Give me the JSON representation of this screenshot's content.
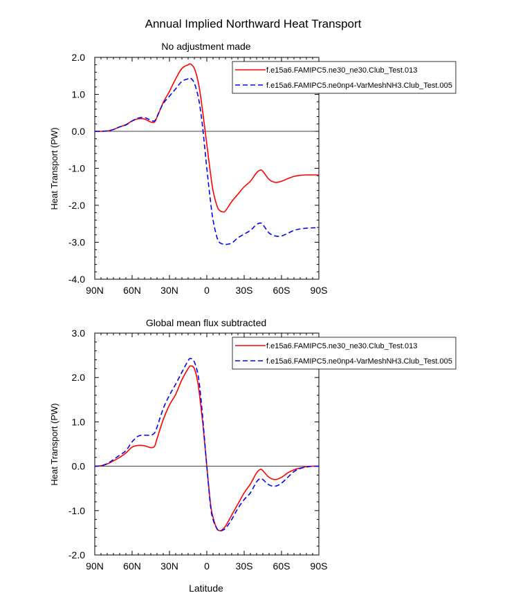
{
  "figure": {
    "title": "Annual Implied Northward Heat Transport",
    "xlabel": "Latitude"
  },
  "colors": {
    "series_1": "#ff0000",
    "series_2": "#0000ff",
    "zero_line": "#000000"
  },
  "chart_data": [
    {
      "type": "line",
      "title": "No adjustment made",
      "ylabel": "Heat Transport (PW)",
      "xlabel": "",
      "xlim": [
        -90,
        90
      ],
      "ylim": [
        -4.0,
        2.0
      ],
      "x_ticks": [
        -90,
        -60,
        -30,
        0,
        30,
        60,
        90
      ],
      "x_tick_labels": [
        "90N",
        "60N",
        "30N",
        "0",
        "30S",
        "60S",
        "90S"
      ],
      "y_ticks": [
        2.0,
        1.0,
        0.0,
        -1.0,
        -2.0,
        -3.0,
        -4.0
      ],
      "y_tick_labels": [
        "2.0",
        "1.0",
        "0.0",
        "-1.0",
        "-2.0",
        "-3.0",
        "-4.0"
      ],
      "grid": false,
      "legend_position": "top-right",
      "series": [
        {
          "name": "f.e15a6.FAMIPC5.ne30_ne30.Club_Test.013",
          "style": "solid",
          "x": [
            -90,
            -85,
            -80,
            -75,
            -70,
            -65,
            -60,
            -55,
            -50,
            -45,
            -42,
            -40,
            -35,
            -30,
            -25,
            -20,
            -15,
            -13,
            -10,
            -7,
            -5,
            -3,
            0,
            3,
            5,
            8,
            10,
            13,
            15,
            20,
            25,
            30,
            35,
            40,
            43,
            45,
            50,
            55,
            60,
            65,
            70,
            75,
            80,
            85,
            90
          ],
          "y": [
            0.0,
            0.0,
            0.01,
            0.05,
            0.12,
            0.18,
            0.28,
            0.34,
            0.33,
            0.25,
            0.25,
            0.38,
            0.78,
            1.08,
            1.42,
            1.7,
            1.8,
            1.82,
            1.7,
            1.35,
            0.95,
            0.45,
            -0.35,
            -1.15,
            -1.6,
            -2.0,
            -2.13,
            -2.18,
            -2.15,
            -1.9,
            -1.7,
            -1.5,
            -1.35,
            -1.12,
            -1.05,
            -1.08,
            -1.3,
            -1.38,
            -1.35,
            -1.28,
            -1.22,
            -1.19,
            -1.18,
            -1.18,
            -1.18
          ]
        },
        {
          "name": "f.e15a6.FAMIPC5.ne0np4-VarMeshNH3.Club_Test.005",
          "style": "dashed",
          "x": [
            -90,
            -85,
            -80,
            -75,
            -70,
            -65,
            -60,
            -55,
            -50,
            -45,
            -42,
            -40,
            -35,
            -30,
            -25,
            -20,
            -15,
            -13,
            -10,
            -7,
            -5,
            -3,
            0,
            3,
            5,
            8,
            10,
            13,
            15,
            20,
            25,
            30,
            35,
            40,
            43,
            45,
            50,
            55,
            60,
            65,
            70,
            75,
            80,
            85,
            90
          ],
          "y": [
            0.0,
            0.0,
            0.01,
            0.05,
            0.12,
            0.17,
            0.28,
            0.36,
            0.37,
            0.3,
            0.28,
            0.4,
            0.75,
            0.95,
            1.15,
            1.35,
            1.42,
            1.44,
            1.3,
            0.95,
            0.55,
            0.0,
            -1.0,
            -1.9,
            -2.4,
            -2.85,
            -3.0,
            -3.05,
            -3.06,
            -3.02,
            -2.88,
            -2.78,
            -2.68,
            -2.52,
            -2.48,
            -2.52,
            -2.75,
            -2.83,
            -2.83,
            -2.76,
            -2.68,
            -2.64,
            -2.62,
            -2.61,
            -2.61
          ]
        }
      ]
    },
    {
      "type": "line",
      "title": "Global mean flux subtracted",
      "ylabel": "Heat Transport (PW)",
      "xlabel": "Latitude",
      "xlim": [
        -90,
        90
      ],
      "ylim": [
        -2.0,
        3.0
      ],
      "x_ticks": [
        -90,
        -60,
        -30,
        0,
        30,
        60,
        90
      ],
      "x_tick_labels": [
        "90N",
        "60N",
        "30N",
        "0",
        "30S",
        "60S",
        "90S"
      ],
      "y_ticks": [
        3.0,
        2.0,
        1.0,
        0.0,
        -1.0,
        -2.0
      ],
      "y_tick_labels": [
        "3.0",
        "2.0",
        "1.0",
        "0.0",
        "-1.0",
        "-2.0"
      ],
      "grid": false,
      "legend_position": "top-right",
      "series": [
        {
          "name": "f.e15a6.FAMIPC5.ne30_ne30.Club_Test.013",
          "style": "solid",
          "x": [
            -90,
            -85,
            -80,
            -75,
            -70,
            -65,
            -60,
            -55,
            -50,
            -45,
            -42,
            -40,
            -35,
            -30,
            -25,
            -20,
            -15,
            -13,
            -10,
            -7,
            -5,
            -3,
            0,
            3,
            5,
            8,
            10,
            12,
            15,
            20,
            25,
            30,
            35,
            40,
            43,
            45,
            50,
            55,
            60,
            65,
            70,
            75,
            80,
            85,
            90
          ],
          "y": [
            0.0,
            0.01,
            0.05,
            0.12,
            0.2,
            0.3,
            0.43,
            0.47,
            0.46,
            0.42,
            0.45,
            0.62,
            1.05,
            1.38,
            1.62,
            1.95,
            2.2,
            2.26,
            2.2,
            1.85,
            1.4,
            0.9,
            0.0,
            -0.85,
            -1.15,
            -1.4,
            -1.45,
            -1.44,
            -1.35,
            -1.1,
            -0.85,
            -0.6,
            -0.4,
            -0.15,
            -0.07,
            -0.1,
            -0.25,
            -0.3,
            -0.25,
            -0.15,
            -0.08,
            -0.04,
            -0.01,
            0.0,
            0.0
          ]
        },
        {
          "name": "f.e15a6.FAMIPC5.ne0np4-VarMeshNH3.Club_Test.005",
          "style": "dashed",
          "x": [
            -90,
            -85,
            -80,
            -75,
            -70,
            -65,
            -60,
            -55,
            -50,
            -45,
            -42,
            -40,
            -35,
            -30,
            -25,
            -20,
            -15,
            -13,
            -10,
            -7,
            -5,
            -3,
            0,
            3,
            5,
            8,
            10,
            12,
            15,
            20,
            25,
            30,
            35,
            40,
            43,
            45,
            50,
            55,
            60,
            65,
            70,
            75,
            80,
            85,
            90
          ],
          "y": [
            0.0,
            0.01,
            0.06,
            0.15,
            0.25,
            0.35,
            0.55,
            0.68,
            0.7,
            0.7,
            0.75,
            0.88,
            1.3,
            1.6,
            1.85,
            2.12,
            2.38,
            2.43,
            2.35,
            2.05,
            1.6,
            1.0,
            0.0,
            -0.9,
            -1.2,
            -1.4,
            -1.45,
            -1.45,
            -1.4,
            -1.2,
            -0.95,
            -0.75,
            -0.6,
            -0.35,
            -0.28,
            -0.3,
            -0.42,
            -0.45,
            -0.38,
            -0.25,
            -0.12,
            -0.05,
            -0.02,
            0.0,
            0.0
          ]
        }
      ]
    }
  ]
}
